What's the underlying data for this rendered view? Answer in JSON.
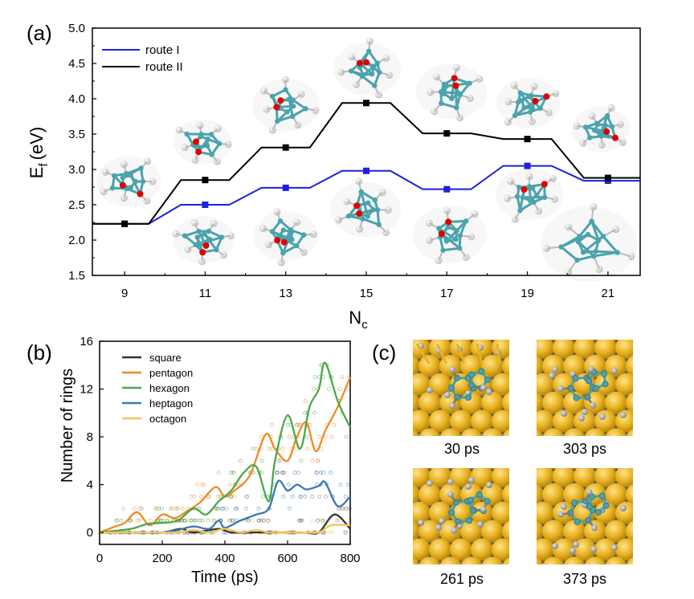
{
  "colors": {
    "route_I": "#1f1fe0",
    "route_II": "#000000",
    "square": "#333333",
    "pentagon": "#f08a24",
    "hexagon": "#4aa84a",
    "heptagon": "#3a78b5",
    "octagon": "#f5c35a",
    "gold": "#e8b21f",
    "carbon": "#4aa3ad",
    "oxygen": "#e00000"
  },
  "chart_data": [
    {
      "panel_label": "(a)",
      "type": "line",
      "xlabel": "N",
      "xlabel_sub": "c",
      "ylabel": "E",
      "ylabel_sub": "f",
      "ylabel_unit": "(eV)",
      "xlim": [
        8.2,
        21.8
      ],
      "ylim": [
        1.5,
        5.0
      ],
      "xticks": [
        "9",
        "11",
        "13",
        "15",
        "17",
        "19",
        "21"
      ],
      "yticks": [
        "1.5",
        "2.0",
        "2.5",
        "3.0",
        "3.5",
        "4.0",
        "4.5",
        "5.0"
      ],
      "x": [
        9,
        11,
        13,
        15,
        17,
        19,
        21
      ],
      "series": [
        {
          "name": "route I",
          "values": [
            2.23,
            2.5,
            2.74,
            2.98,
            2.72,
            3.05,
            2.84
          ]
        },
        {
          "name": "route II",
          "values": [
            2.23,
            2.85,
            3.31,
            3.94,
            3.51,
            3.43,
            2.88
          ]
        }
      ],
      "legend": "top-left"
    },
    {
      "panel_label": "(b)",
      "type": "line",
      "xlabel": "Time (ps)",
      "ylabel": "Number of rings",
      "xlim": [
        0,
        800
      ],
      "ylim": [
        -1,
        16
      ],
      "xticks": [
        "0",
        "200",
        "400",
        "600",
        "800"
      ],
      "yticks": [
        "0",
        "4",
        "8",
        "12",
        "16"
      ],
      "legend": "top-left",
      "series": [
        {
          "name": "square",
          "x": [
            0,
            100,
            200,
            260,
            300,
            380,
            420,
            500,
            540,
            580,
            620,
            660,
            700,
            750,
            800
          ],
          "values": [
            0,
            0,
            0,
            0.3,
            0,
            0.3,
            0,
            0,
            0,
            0,
            0,
            0,
            0,
            1.5,
            0.3
          ]
        },
        {
          "name": "pentagon",
          "x": [
            0,
            50,
            80,
            120,
            160,
            200,
            240,
            280,
            320,
            370,
            400,
            430,
            480,
            530,
            560,
            600,
            630,
            660,
            690,
            720,
            760,
            800
          ],
          "values": [
            0,
            0.5,
            0.8,
            1.7,
            0.6,
            1.5,
            1.2,
            1.8,
            2.5,
            3.8,
            3.0,
            3.5,
            4.8,
            8.2,
            7.0,
            6.0,
            8.0,
            9.2,
            6.8,
            8.5,
            10.5,
            13.0
          ]
        },
        {
          "name": "hexagon",
          "x": [
            0,
            100,
            150,
            200,
            250,
            300,
            340,
            380,
            420,
            460,
            500,
            540,
            560,
            600,
            640,
            670,
            700,
            720,
            760,
            800
          ],
          "values": [
            0,
            0.3,
            0.7,
            0.8,
            1.0,
            2.0,
            1.5,
            2.6,
            3.5,
            5.0,
            5.5,
            2.6,
            6.0,
            9.8,
            7.0,
            10.5,
            12.0,
            14.2,
            11.0,
            8.8
          ]
        },
        {
          "name": "heptagon",
          "x": [
            0,
            150,
            200,
            250,
            300,
            350,
            380,
            400,
            450,
            500,
            540,
            570,
            600,
            630,
            660,
            700,
            720,
            760,
            800
          ],
          "values": [
            0,
            0,
            0,
            0.2,
            0.5,
            0.3,
            1.0,
            0.4,
            1.0,
            1.5,
            2.0,
            4.3,
            3.5,
            4.0,
            3.6,
            3.9,
            4.2,
            2.2,
            3.0
          ]
        },
        {
          "name": "octagon",
          "x": [
            0,
            200,
            250,
            300,
            350,
            400,
            450,
            500,
            540,
            600,
            660,
            700,
            740,
            800
          ],
          "values": [
            0,
            0,
            0,
            0.2,
            0,
            0.3,
            0,
            0.2,
            0,
            0,
            0,
            0,
            0.6,
            0.6
          ]
        }
      ]
    }
  ],
  "panel_c": {
    "label": "(c)",
    "images": [
      {
        "caption": "30 ps"
      },
      {
        "caption": "303 ps"
      },
      {
        "caption": "261 ps"
      },
      {
        "caption": "373 ps"
      }
    ]
  }
}
